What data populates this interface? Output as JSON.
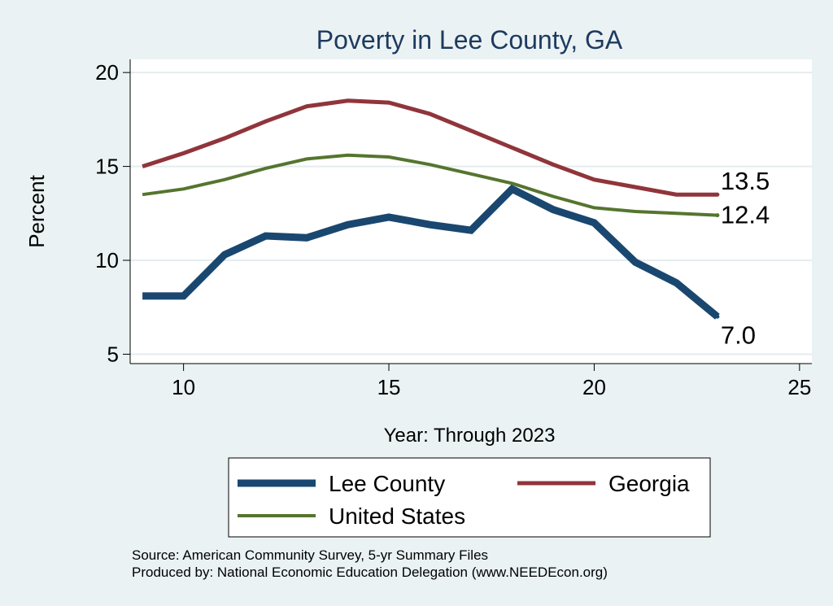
{
  "chart_data": {
    "type": "line",
    "title": "Poverty in Lee County, GA",
    "xlabel": "Year: Through 2023",
    "ylabel": "Percent",
    "xlim": [
      8.7,
      25.3
    ],
    "ylim": [
      4.5,
      20.7
    ],
    "x_ticks": [
      10,
      15,
      20,
      25
    ],
    "y_ticks": [
      5,
      10,
      15,
      20
    ],
    "grid": "horizontal",
    "x": [
      9,
      10,
      11,
      12,
      13,
      14,
      15,
      16,
      17,
      18,
      19,
      20,
      21,
      22,
      23
    ],
    "series": [
      {
        "name": "Lee County",
        "color": "#1a476f",
        "values": [
          8.1,
          8.1,
          10.3,
          11.3,
          11.2,
          11.9,
          12.3,
          11.9,
          11.6,
          13.8,
          12.7,
          12.0,
          9.9,
          8.8,
          7.0
        ],
        "end_label": "7.0"
      },
      {
        "name": "Georgia",
        "color": "#90353b",
        "values": [
          15.0,
          15.7,
          16.5,
          17.4,
          18.2,
          18.5,
          18.4,
          17.8,
          16.9,
          16.0,
          15.1,
          14.3,
          13.9,
          13.5,
          13.5
        ],
        "end_label": "13.5"
      },
      {
        "name": "United States",
        "color": "#55752f",
        "values": [
          13.5,
          13.8,
          14.3,
          14.9,
          15.4,
          15.6,
          15.5,
          15.1,
          14.6,
          14.1,
          13.4,
          12.8,
          12.6,
          12.5,
          12.4
        ],
        "end_label": "12.4"
      }
    ],
    "legend": {
      "placement": "bottom",
      "order": [
        "Lee County",
        "Georgia",
        "United States"
      ]
    },
    "notes": [
      "Source: American Community Survey, 5-yr Summary Files",
      "Produced by: National Economic Education Delegation (www.NEEDEcon.org)"
    ]
  }
}
